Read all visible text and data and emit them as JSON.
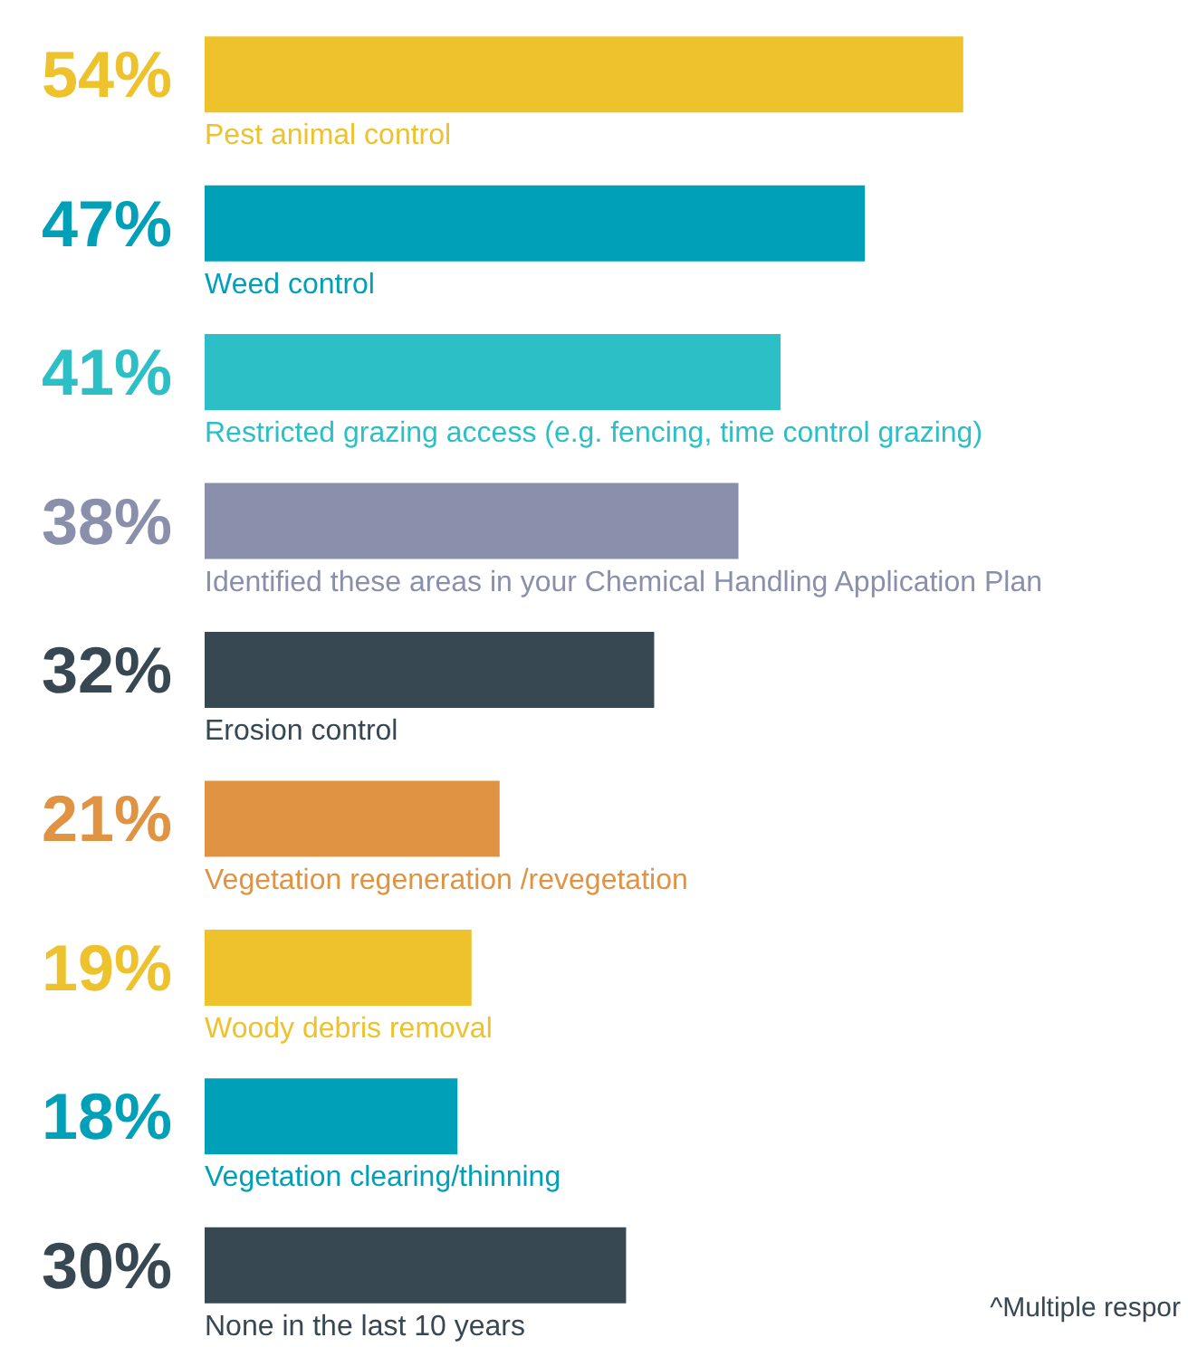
{
  "chart_data": {
    "type": "bar",
    "orientation": "horizontal",
    "categories": [
      "Pest animal control",
      "Weed control",
      "Restricted grazing access (e.g. fencing, time control grazing)",
      "Identified these areas in your Chemical Handling Application Plan",
      "Erosion control",
      "Vegetation regeneration /revegetation",
      "Woody debris removal",
      "Vegetation clearing/thinning",
      "None in the last 10 years"
    ],
    "values": [
      54,
      47,
      41,
      38,
      32,
      21,
      19,
      18,
      30
    ],
    "value_labels": [
      "54%",
      "47%",
      "41%",
      "38%",
      "32%",
      "21%",
      "19%",
      "18%",
      "30%"
    ],
    "colors": [
      "#edc22c",
      "#00a0b8",
      "#2cc0c6",
      "#8a8fab",
      "#374853",
      "#df9343",
      "#edc22c",
      "#00a0b8",
      "#374853"
    ],
    "xlim": [
      0,
      70
    ],
    "annotations": [
      "^Multiple respor"
    ]
  }
}
